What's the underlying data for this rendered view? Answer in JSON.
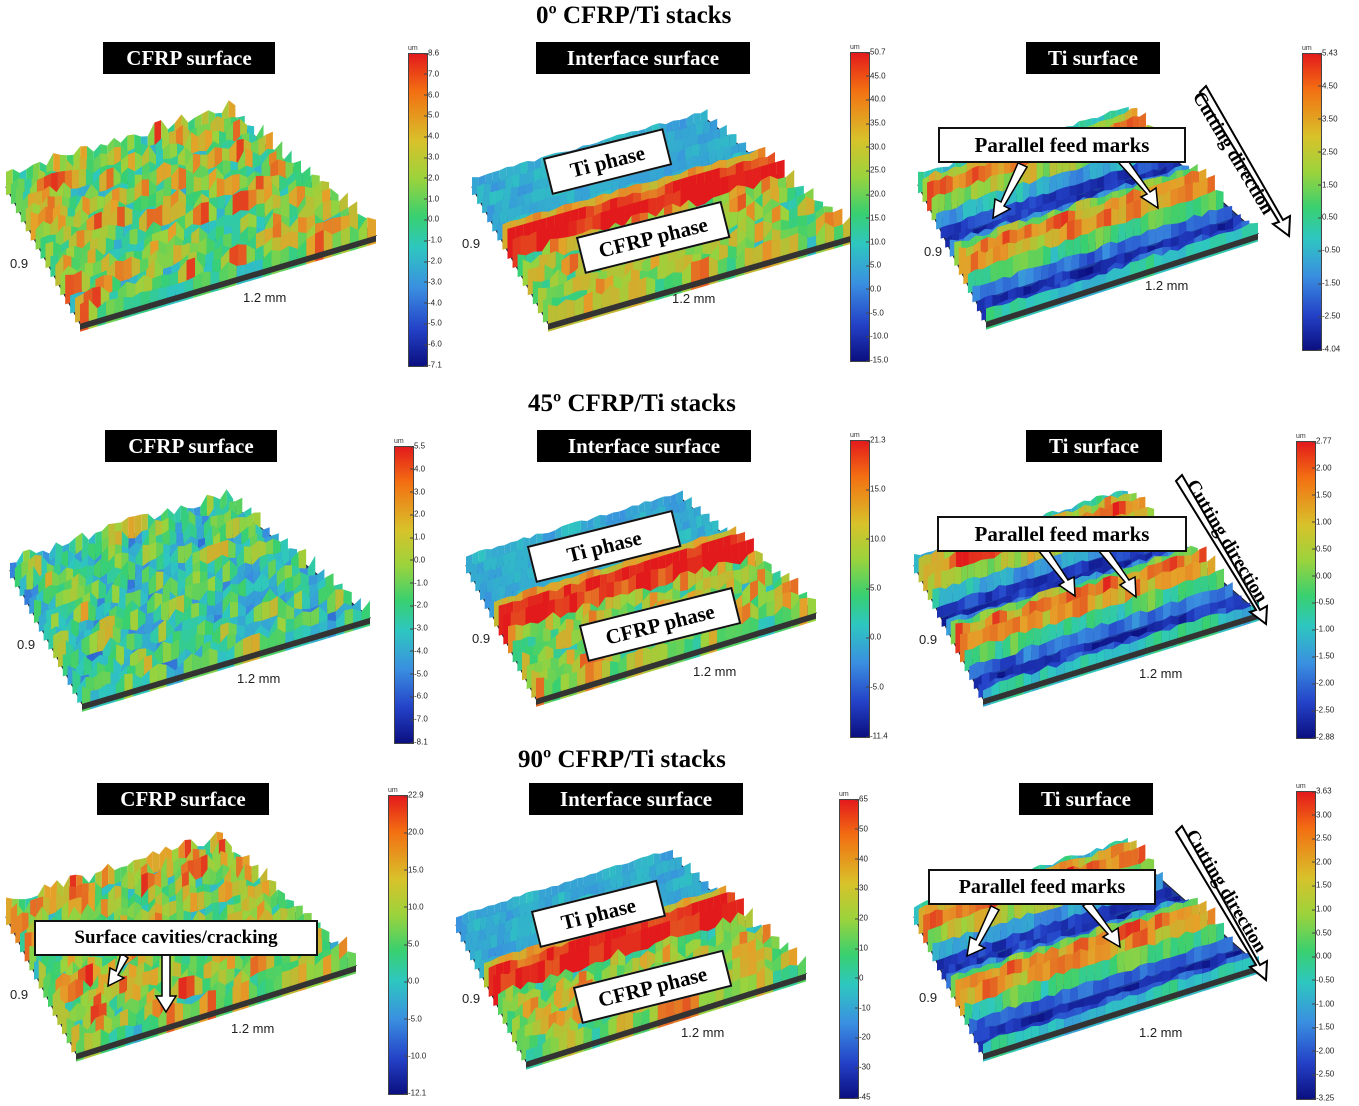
{
  "rows": [
    {
      "title": "0º CFRP/Ti stacks",
      "panels": [
        {
          "label": "CFRP surface",
          "x_axis": "1.2 mm",
          "y_axis": "0.9",
          "colorbar": {
            "unit": "um",
            "ticks": [
              "8.6",
              "7.0",
              "6.0",
              "5.0",
              "4.0",
              "3.0",
              "2.0",
              "1.0",
              "0.0",
              "-1.0",
              "-2.0",
              "-3.0",
              "-4.0",
              "-5.0",
              "-6.0",
              "-7.1"
            ]
          }
        },
        {
          "label": "Interface  surface",
          "x_axis": "1.2 mm",
          "y_axis": "0.9",
          "callouts": [
            "Ti phase",
            "CFRP phase"
          ],
          "colorbar": {
            "unit": "um",
            "ticks": [
              "50.7",
              "45.0",
              "40.0",
              "35.0",
              "30.0",
              "25.0",
              "20.0",
              "15.0",
              "10.0",
              "5.0",
              "0.0",
              "-5.0",
              "-10.0",
              "-15.0"
            ]
          }
        },
        {
          "label": "Ti surface",
          "x_axis": "1.2 mm",
          "y_axis": "0.9",
          "callouts": [
            "Parallel feed marks"
          ],
          "direction": "Cutting direction",
          "colorbar": {
            "unit": "um",
            "ticks": [
              "5.43",
              "4.50",
              "3.50",
              "2.50",
              "1.50",
              "0.50",
              "-0.50",
              "-1.50",
              "-2.50",
              "-4.04"
            ]
          }
        }
      ]
    },
    {
      "title": "45º CFRP/Ti stacks",
      "panels": [
        {
          "label": "CFRP surface",
          "x_axis": "1.2 mm",
          "y_axis": "0.9",
          "colorbar": {
            "unit": "um",
            "ticks": [
              "5.5",
              "4.0",
              "3.0",
              "2.0",
              "1.0",
              "0.0",
              "-1.0",
              "-2.0",
              "-3.0",
              "-4.0",
              "-5.0",
              "-6.0",
              "-7.0",
              "-8.1"
            ]
          }
        },
        {
          "label": "Interface  surface",
          "x_axis": "1.2 mm",
          "y_axis": "0.9",
          "callouts": [
            "Ti phase",
            "CFRP phase"
          ],
          "colorbar": {
            "unit": "um",
            "ticks": [
              "21.3",
              "15.0",
              "10.0",
              "5.0",
              "0.0",
              "-5.0",
              "-11.4"
            ]
          }
        },
        {
          "label": "Ti surface",
          "x_axis": "1.2 mm",
          "y_axis": "0.9",
          "callouts": [
            "Parallel feed marks"
          ],
          "direction": "Cutting direction",
          "colorbar": {
            "unit": "um",
            "ticks": [
              "2.77",
              "2.00",
              "1.50",
              "1.00",
              "0.50",
              "0.00",
              "-0.50",
              "-1.00",
              "-1.50",
              "-2.00",
              "-2.50",
              "-2.88"
            ]
          }
        }
      ]
    },
    {
      "title": "90º CFRP/Ti stacks",
      "panels": [
        {
          "label": "CFRP surface",
          "x_axis": "1.2 mm",
          "y_axis": "0.9",
          "callouts": [
            "Surface cavities/cracking"
          ],
          "colorbar": {
            "unit": "um",
            "ticks": [
              "22.9",
              "20.0",
              "15.0",
              "10.0",
              "5.0",
              "0.0",
              "-5.0",
              "-10.0",
              "-12.1"
            ]
          }
        },
        {
          "label": "Interface  surface",
          "x_axis": "1.2 mm",
          "y_axis": "0.9",
          "callouts": [
            "Ti phase",
            "CFRP phase"
          ],
          "colorbar": {
            "unit": "um",
            "ticks": [
              "65",
              "50",
              "40",
              "30",
              "20",
              "10",
              "0",
              "-10",
              "-20",
              "-30",
              "-45"
            ]
          }
        },
        {
          "label": "Ti surface",
          "x_axis": "1.2 mm",
          "y_axis": "0.9",
          "callouts": [
            "Parallel feed marks"
          ],
          "direction": "Cutting direction",
          "colorbar": {
            "unit": "um",
            "ticks": [
              "3.63",
              "3.00",
              "2.50",
              "2.00",
              "1.50",
              "1.00",
              "0.50",
              "0.00",
              "-0.50",
              "-1.00",
              "-1.50",
              "-2.00",
              "-2.50",
              "-3.25"
            ]
          }
        }
      ]
    }
  ]
}
